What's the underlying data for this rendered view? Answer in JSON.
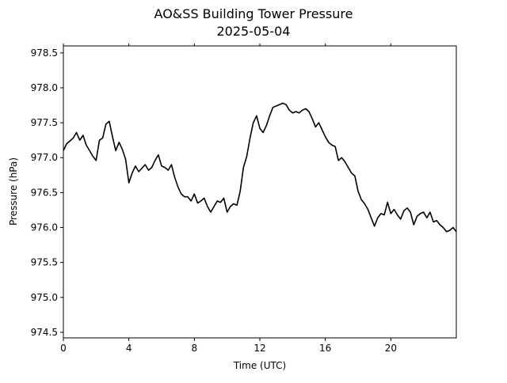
{
  "chart_data": {
    "type": "line",
    "title": "AO&SS Building Tower Pressure",
    "subtitle": "2025-05-04",
    "xlabel": "Time (UTC)",
    "ylabel": "Pressure (hPa)",
    "xlim": [
      0,
      24
    ],
    "ylim": [
      974.42,
      978.6
    ],
    "xticks": [
      0,
      4,
      8,
      12,
      16,
      20
    ],
    "yticks": [
      974.5,
      975.0,
      975.5,
      976.0,
      976.5,
      977.0,
      977.5,
      978.0,
      978.5
    ],
    "ytick_labels": [
      "974.5",
      "975.0",
      "975.5",
      "976.0",
      "976.5",
      "977.0",
      "977.5",
      "978.0",
      "978.5"
    ],
    "grid": false,
    "legend": "none",
    "series": [
      {
        "color": "#000000",
        "x": [
          0.0,
          0.2,
          0.4,
          0.6,
          0.8,
          1.0,
          1.2,
          1.4,
          1.6,
          1.8,
          2.0,
          2.2,
          2.4,
          2.6,
          2.8,
          3.0,
          3.2,
          3.4,
          3.6,
          3.8,
          4.0,
          4.2,
          4.4,
          4.6,
          4.8,
          5.0,
          5.2,
          5.4,
          5.6,
          5.8,
          6.0,
          6.2,
          6.4,
          6.6,
          6.8,
          7.0,
          7.2,
          7.4,
          7.6,
          7.8,
          8.0,
          8.2,
          8.4,
          8.6,
          8.8,
          9.0,
          9.2,
          9.4,
          9.6,
          9.8,
          10.0,
          10.2,
          10.4,
          10.6,
          10.8,
          11.0,
          11.2,
          11.4,
          11.6,
          11.8,
          12.0,
          12.2,
          12.4,
          12.6,
          12.8,
          13.0,
          13.2,
          13.4,
          13.6,
          13.8,
          14.0,
          14.2,
          14.4,
          14.6,
          14.8,
          15.0,
          15.2,
          15.4,
          15.6,
          15.8,
          16.0,
          16.2,
          16.4,
          16.6,
          16.8,
          17.0,
          17.2,
          17.4,
          17.6,
          17.8,
          18.0,
          18.2,
          18.4,
          18.6,
          18.8,
          19.0,
          19.2,
          19.4,
          19.6,
          19.8,
          20.0,
          20.2,
          20.4,
          20.6,
          20.8,
          21.0,
          21.2,
          21.4,
          21.6,
          21.8,
          22.0,
          22.2,
          22.4,
          22.6,
          22.8,
          23.0,
          23.2,
          23.4,
          23.6,
          23.8,
          24.0
        ],
        "y": [
          977.1,
          977.2,
          977.24,
          977.28,
          977.36,
          977.25,
          977.32,
          977.18,
          977.1,
          977.02,
          976.96,
          977.25,
          977.28,
          977.48,
          977.52,
          977.3,
          977.1,
          977.22,
          977.12,
          976.98,
          976.64,
          976.78,
          976.88,
          976.8,
          976.85,
          976.9,
          976.82,
          976.86,
          976.96,
          977.04,
          976.88,
          976.86,
          976.82,
          976.9,
          976.72,
          976.58,
          976.48,
          976.44,
          976.44,
          976.38,
          976.48,
          976.35,
          976.38,
          976.42,
          976.3,
          976.22,
          976.3,
          976.38,
          976.36,
          976.42,
          976.22,
          976.3,
          976.34,
          976.32,
          976.52,
          976.86,
          977.02,
          977.28,
          977.5,
          977.6,
          977.42,
          977.36,
          977.46,
          977.6,
          977.72,
          977.74,
          977.76,
          977.78,
          977.76,
          977.68,
          977.64,
          977.66,
          977.64,
          977.68,
          977.7,
          977.66,
          977.56,
          977.44,
          977.5,
          977.4,
          977.3,
          977.22,
          977.18,
          977.16,
          976.96,
          977.0,
          976.94,
          976.86,
          976.78,
          976.74,
          976.52,
          976.4,
          976.34,
          976.26,
          976.14,
          976.02,
          976.14,
          976.2,
          976.18,
          976.36,
          976.2,
          976.26,
          976.18,
          976.12,
          976.24,
          976.28,
          976.22,
          976.04,
          976.16,
          976.2,
          976.22,
          976.14,
          976.22,
          976.08,
          976.1,
          976.04,
          976.0,
          975.94,
          975.96,
          976.0,
          975.94
        ]
      }
    ]
  }
}
